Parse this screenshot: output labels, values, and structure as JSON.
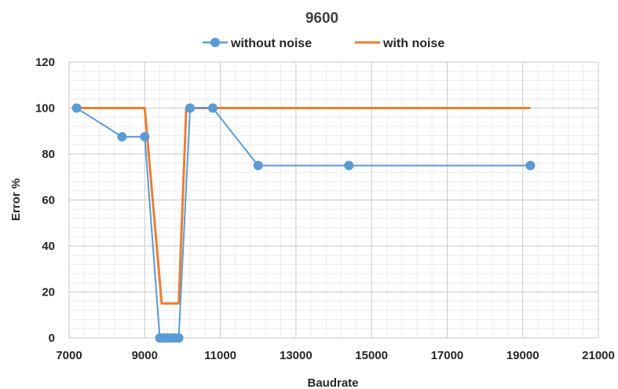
{
  "chart_data": {
    "type": "line",
    "title": "9600",
    "xlabel": "Baudrate",
    "ylabel": "Error %",
    "xlim": [
      7000,
      21000
    ],
    "ylim": [
      0,
      120
    ],
    "x_ticks": [
      "7000",
      "9000",
      "11000",
      "13000",
      "15000",
      "17000",
      "19000",
      "21000"
    ],
    "y_ticks": [
      "0",
      "20",
      "40",
      "60",
      "80",
      "100",
      "120"
    ],
    "x_tick_values": [
      7000,
      9000,
      11000,
      13000,
      15000,
      17000,
      19000,
      21000
    ],
    "y_tick_values": [
      0,
      20,
      40,
      60,
      80,
      100,
      120
    ],
    "grid": {
      "major": true,
      "minor": true
    },
    "legend_position": "top",
    "series": [
      {
        "name": "without noise",
        "color": "#5B9BD5",
        "markers": true,
        "x": [
          7200,
          8400,
          9000,
          9400,
          9500,
          9600,
          9700,
          9800,
          9900,
          10200,
          10800,
          12000,
          14400,
          19200
        ],
        "y": [
          100,
          87.5,
          87.5,
          0,
          0,
          0,
          0,
          0,
          0,
          100,
          100,
          75,
          75,
          75
        ]
      },
      {
        "name": "with noise",
        "color": "#ED7D31",
        "markers": false,
        "x": [
          7200,
          9000,
          9450,
          9900,
          10100,
          19200
        ],
        "y": [
          100,
          100,
          15,
          15,
          100,
          100
        ]
      }
    ]
  }
}
